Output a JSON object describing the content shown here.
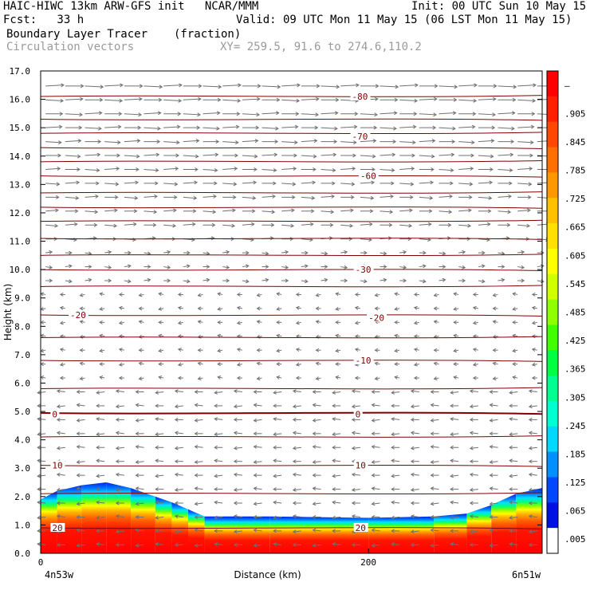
{
  "header": {
    "line1_left": "HAIC-HIWC 13km ARW-GFS init   NCAR/MMM",
    "line1_right": "Init: 00 UTC Sun 10 May 15",
    "line2_left": "Fcst:   33 h",
    "line2_right": "Valid: 09 UTC Mon 11 May 15 (06 LST Mon 11 May 15)",
    "line3_field": "Boundary Layer Tracer",
    "line3_units": "(fraction)",
    "line4_field": "Circulation vectors",
    "line4_xy": "XY= 259.5, 91.6 to 274.6,110.2"
  },
  "chart_data": {
    "type": "heatmap",
    "ylabel": "Height (km)",
    "xlabel": "Distance (km)",
    "ylim": [
      0,
      17
    ],
    "y_ticks": [
      "0.0",
      "1.0",
      "2.0",
      "3.0",
      "4.0",
      "5.0",
      "6.0",
      "7.0",
      "8.0",
      "9.0",
      "10.0",
      "11.0",
      "12.0",
      "13.0",
      "14.0",
      "15.0",
      "16.0",
      "17.0"
    ],
    "xlim": [
      0,
      306
    ],
    "x_ticks": [
      {
        "value": 0,
        "label": "0"
      },
      {
        "value": 200,
        "label": "200"
      }
    ],
    "x_end_labels": {
      "left": "4n53w",
      "right": "6n51w"
    },
    "colorbar": {
      "labels": [
        "–",
        ".905",
        ".845",
        ".785",
        ".725",
        ".665",
        ".605",
        ".545",
        ".485",
        ".425",
        ".365",
        ".305",
        ".245",
        ".185",
        ".125",
        ".065",
        ".005"
      ],
      "colors": [
        "#ff0000",
        "#ff2000",
        "#ff4800",
        "#ff7000",
        "#ff9800",
        "#ffc000",
        "#ffe000",
        "#ffff00",
        "#d0ff00",
        "#90ff00",
        "#40ff00",
        "#00ff40",
        "#00ff90",
        "#00ffd0",
        "#00d8ff",
        "#0090ff",
        "#0048ff",
        "#0010e0",
        "#ffffff"
      ]
    },
    "isotherm_labels": [
      {
        "x": 190,
        "y": 16.1,
        "label": "-80"
      },
      {
        "x": 190,
        "y": 14.7,
        "label": "-70"
      },
      {
        "x": 195,
        "y": 13.3,
        "label": "-60"
      },
      {
        "x": 192,
        "y": 10.0,
        "label": "-30"
      },
      {
        "x": 18,
        "y": 8.4,
        "label": "-20"
      },
      {
        "x": 200,
        "y": 8.3,
        "label": "-20"
      },
      {
        "x": 192,
        "y": 6.8,
        "label": "-10"
      },
      {
        "x": 7,
        "y": 4.9,
        "label": "0"
      },
      {
        "x": 192,
        "y": 4.9,
        "label": "0"
      },
      {
        "x": 7,
        "y": 3.1,
        "label": "10"
      },
      {
        "x": 192,
        "y": 3.1,
        "label": "10"
      },
      {
        "x": 7,
        "y": 0.9,
        "label": "20"
      },
      {
        "x": 192,
        "y": 0.9,
        "label": "20"
      }
    ],
    "isotherm_heights": [
      0.9,
      2.1,
      3.1,
      4.1,
      4.95,
      5.8,
      6.8,
      7.6,
      8.4,
      9.4,
      10.0,
      10.5,
      11.1,
      11.7,
      12.2,
      12.7,
      13.3,
      13.8,
      14.3,
      14.8,
      15.3,
      16.1
    ],
    "tracer_top_km": [
      [
        0,
        1.9
      ],
      [
        10,
        2.2
      ],
      [
        25,
        2.4
      ],
      [
        40,
        2.5
      ],
      [
        55,
        2.3
      ],
      [
        70,
        2.0
      ],
      [
        80,
        1.8
      ],
      [
        90,
        1.55
      ],
      [
        100,
        1.3
      ],
      [
        140,
        1.3
      ],
      [
        200,
        1.25
      ],
      [
        240,
        1.3
      ],
      [
        260,
        1.4
      ],
      [
        275,
        1.7
      ],
      [
        290,
        2.1
      ],
      [
        306,
        2.3
      ]
    ]
  }
}
